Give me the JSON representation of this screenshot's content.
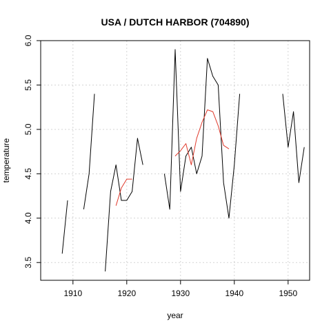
{
  "chart_data": {
    "type": "line",
    "title": "USA / DUTCH HARBOR (704890)",
    "xlabel": "year",
    "ylabel": "temperature",
    "xlim": [
      1904,
      1954
    ],
    "ylim": [
      3.3,
      6.0
    ],
    "xticks": [
      1910,
      1920,
      1930,
      1940,
      1950
    ],
    "yticks": [
      3.5,
      4.0,
      4.5,
      5.0,
      5.5,
      6.0
    ],
    "xtick_labels": [
      "1910",
      "1920",
      "1930",
      "1940",
      "1950"
    ],
    "ytick_labels": [
      "3.5",
      "4.0",
      "4.5",
      "5.0",
      "5.5",
      "6.0"
    ],
    "grid": true,
    "series": [
      {
        "color": "#000000",
        "segments": [
          [
            [
              1908,
              3.6
            ],
            [
              1909,
              4.2
            ]
          ],
          [
            [
              1912,
              4.1
            ],
            [
              1913,
              4.5
            ],
            [
              1914,
              5.4
            ]
          ],
          [
            [
              1916,
              3.4
            ],
            [
              1917,
              4.3
            ],
            [
              1918,
              4.6
            ],
            [
              1919,
              4.2
            ],
            [
              1920,
              4.2
            ],
            [
              1921,
              4.3
            ],
            [
              1922,
              4.9
            ],
            [
              1923,
              4.6
            ]
          ],
          [
            [
              1927,
              4.5
            ],
            [
              1928,
              4.1
            ],
            [
              1929,
              5.9
            ],
            [
              1930,
              4.3
            ],
            [
              1931,
              4.7
            ],
            [
              1932,
              4.8
            ],
            [
              1933,
              4.5
            ],
            [
              1934,
              4.7
            ],
            [
              1935,
              5.8
            ],
            [
              1936,
              5.6
            ],
            [
              1937,
              5.5
            ],
            [
              1938,
              4.4
            ],
            [
              1939,
              4.0
            ],
            [
              1940,
              4.6
            ],
            [
              1941,
              5.4
            ]
          ],
          [
            [
              1949,
              5.4
            ],
            [
              1950,
              4.8
            ],
            [
              1951,
              5.2
            ],
            [
              1952,
              4.4
            ],
            [
              1953,
              4.8
            ]
          ]
        ]
      },
      {
        "color": "#e0392b",
        "segments": [
          [
            [
              1918,
              4.14
            ],
            [
              1919,
              4.34
            ],
            [
              1920,
              4.44
            ],
            [
              1921,
              4.44
            ]
          ],
          [
            [
              1929,
              4.7
            ],
            [
              1930,
              4.76
            ],
            [
              1931,
              4.84
            ],
            [
              1932,
              4.6
            ],
            [
              1933,
              4.9
            ],
            [
              1934,
              5.08
            ],
            [
              1935,
              5.22
            ],
            [
              1936,
              5.2
            ],
            [
              1937,
              5.04
            ],
            [
              1938,
              4.82
            ],
            [
              1939,
              4.78
            ]
          ]
        ]
      }
    ]
  }
}
